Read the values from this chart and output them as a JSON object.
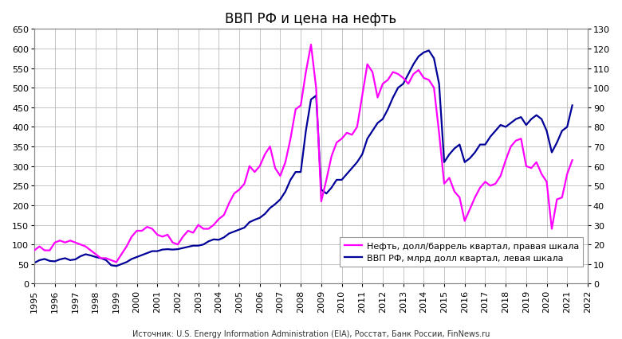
{
  "title": "ВВП РФ и цена на нефть",
  "source": "Источник: U.S. Energy Information Administration (EIA), Росстат, Банк России, FinNews.ru",
  "legend_oil": "Нефть, долл/баррель квартал, правая шкала",
  "legend_gdp": "ВВП РФ, млрд долл квартал, левая шкала",
  "left_ylim": [
    0,
    650
  ],
  "right_ylim": [
    0,
    130
  ],
  "left_yticks": [
    0,
    50,
    100,
    150,
    200,
    250,
    300,
    350,
    400,
    450,
    500,
    550,
    600,
    650
  ],
  "right_yticks": [
    0,
    10,
    20,
    30,
    40,
    50,
    60,
    70,
    80,
    90,
    100,
    110,
    120,
    130
  ],
  "xticks": [
    "1995",
    "1996",
    "1997",
    "1998",
    "1999",
    "2000",
    "2001",
    "2002",
    "2003",
    "2004",
    "2005",
    "2006",
    "2007",
    "2008",
    "2009",
    "2010",
    "2011",
    "2012",
    "2013",
    "2014",
    "2015",
    "2016",
    "2017",
    "2018",
    "2019",
    "2020",
    "2021",
    "2022"
  ],
  "oil_color": "#FF00FF",
  "gdp_color": "#000099",
  "background": "#FFFFFF",
  "grid_color": "#BBBBBB",
  "title_fontsize": 12,
  "tick_fontsize": 8,
  "oil_x": [
    1995.0,
    1995.25,
    1995.5,
    1995.75,
    1996.0,
    1996.25,
    1996.5,
    1996.75,
    1997.0,
    1997.25,
    1997.5,
    1997.75,
    1998.0,
    1998.25,
    1998.5,
    1998.75,
    1999.0,
    1999.25,
    1999.5,
    1999.75,
    2000.0,
    2000.25,
    2000.5,
    2000.75,
    2001.0,
    2001.25,
    2001.5,
    2001.75,
    2002.0,
    2002.25,
    2002.5,
    2002.75,
    2003.0,
    2003.25,
    2003.5,
    2003.75,
    2004.0,
    2004.25,
    2004.5,
    2004.75,
    2005.0,
    2005.25,
    2005.5,
    2005.75,
    2006.0,
    2006.25,
    2006.5,
    2006.75,
    2007.0,
    2007.25,
    2007.5,
    2007.75,
    2008.0,
    2008.25,
    2008.5,
    2008.75,
    2009.0,
    2009.25,
    2009.5,
    2009.75,
    2010.0,
    2010.25,
    2010.5,
    2010.75,
    2011.0,
    2011.25,
    2011.5,
    2011.75,
    2012.0,
    2012.25,
    2012.5,
    2012.75,
    2013.0,
    2013.25,
    2013.5,
    2013.75,
    2014.0,
    2014.25,
    2014.5,
    2014.75,
    2015.0,
    2015.25,
    2015.5,
    2015.75,
    2016.0,
    2016.25,
    2016.5,
    2016.75,
    2017.0,
    2017.25,
    2017.5,
    2017.75,
    2018.0,
    2018.25,
    2018.5,
    2018.75,
    2019.0,
    2019.25,
    2019.5,
    2019.75,
    2020.0,
    2020.25,
    2020.5,
    2020.75,
    2021.0,
    2021.25
  ],
  "oil_y": [
    17,
    19,
    17,
    17,
    21,
    22,
    21,
    22,
    21,
    20,
    19,
    17,
    15,
    13,
    13,
    12,
    11,
    15,
    19,
    24,
    27,
    27,
    29,
    28,
    25,
    24,
    25,
    21,
    20,
    24,
    27,
    26,
    30,
    28,
    28,
    30,
    33,
    35,
    41,
    46,
    48,
    51,
    60,
    57,
    60,
    66,
    70,
    59,
    55,
    62,
    74,
    89,
    91,
    108,
    122,
    100,
    42,
    53,
    65,
    72,
    74,
    77,
    76,
    80,
    96,
    112,
    108,
    95,
    102,
    104,
    108,
    107,
    105,
    102,
    107,
    109,
    105,
    104,
    100,
    77,
    51,
    54,
    47,
    44,
    32,
    38,
    44,
    49,
    52,
    50,
    51,
    55,
    63,
    70,
    73,
    74,
    60,
    59,
    62,
    56,
    52,
    28,
    43,
    44,
    56,
    63
  ],
  "gdp_x": [
    1995.0,
    1995.25,
    1995.5,
    1995.75,
    1996.0,
    1996.25,
    1996.5,
    1996.75,
    1997.0,
    1997.25,
    1997.5,
    1997.75,
    1998.0,
    1998.25,
    1998.5,
    1998.75,
    1999.0,
    1999.25,
    1999.5,
    1999.75,
    2000.0,
    2000.25,
    2000.5,
    2000.75,
    2001.0,
    2001.25,
    2001.5,
    2001.75,
    2002.0,
    2002.25,
    2002.5,
    2002.75,
    2003.0,
    2003.25,
    2003.5,
    2003.75,
    2004.0,
    2004.25,
    2004.5,
    2004.75,
    2005.0,
    2005.25,
    2005.5,
    2005.75,
    2006.0,
    2006.25,
    2006.5,
    2006.75,
    2007.0,
    2007.25,
    2007.5,
    2007.75,
    2008.0,
    2008.25,
    2008.5,
    2008.75,
    2009.0,
    2009.25,
    2009.5,
    2009.75,
    2010.0,
    2010.25,
    2010.5,
    2010.75,
    2011.0,
    2011.25,
    2011.5,
    2011.75,
    2012.0,
    2012.25,
    2012.5,
    2012.75,
    2013.0,
    2013.25,
    2013.5,
    2013.75,
    2014.0,
    2014.25,
    2014.5,
    2014.75,
    2015.0,
    2015.25,
    2015.5,
    2015.75,
    2016.0,
    2016.25,
    2016.5,
    2016.75,
    2017.0,
    2017.25,
    2017.5,
    2017.75,
    2018.0,
    2018.25,
    2018.5,
    2018.75,
    2019.0,
    2019.25,
    2019.5,
    2019.75,
    2020.0,
    2020.25,
    2020.5,
    2020.75,
    2021.0,
    2021.25
  ],
  "gdp_y": [
    53,
    60,
    63,
    58,
    57,
    62,
    65,
    60,
    62,
    70,
    75,
    72,
    68,
    65,
    60,
    47,
    45,
    50,
    55,
    63,
    68,
    73,
    78,
    83,
    83,
    87,
    88,
    87,
    88,
    91,
    94,
    97,
    97,
    100,
    108,
    113,
    112,
    118,
    128,
    133,
    138,
    143,
    157,
    163,
    168,
    178,
    193,
    203,
    215,
    235,
    265,
    285,
    285,
    390,
    470,
    480,
    240,
    230,
    245,
    265,
    265,
    280,
    295,
    310,
    330,
    370,
    390,
    410,
    420,
    445,
    475,
    500,
    510,
    535,
    560,
    580,
    590,
    595,
    575,
    510,
    310,
    330,
    345,
    355,
    310,
    320,
    335,
    355,
    355,
    375,
    390,
    405,
    400,
    410,
    420,
    425,
    405,
    420,
    430,
    420,
    390,
    335,
    360,
    390,
    400,
    455
  ]
}
